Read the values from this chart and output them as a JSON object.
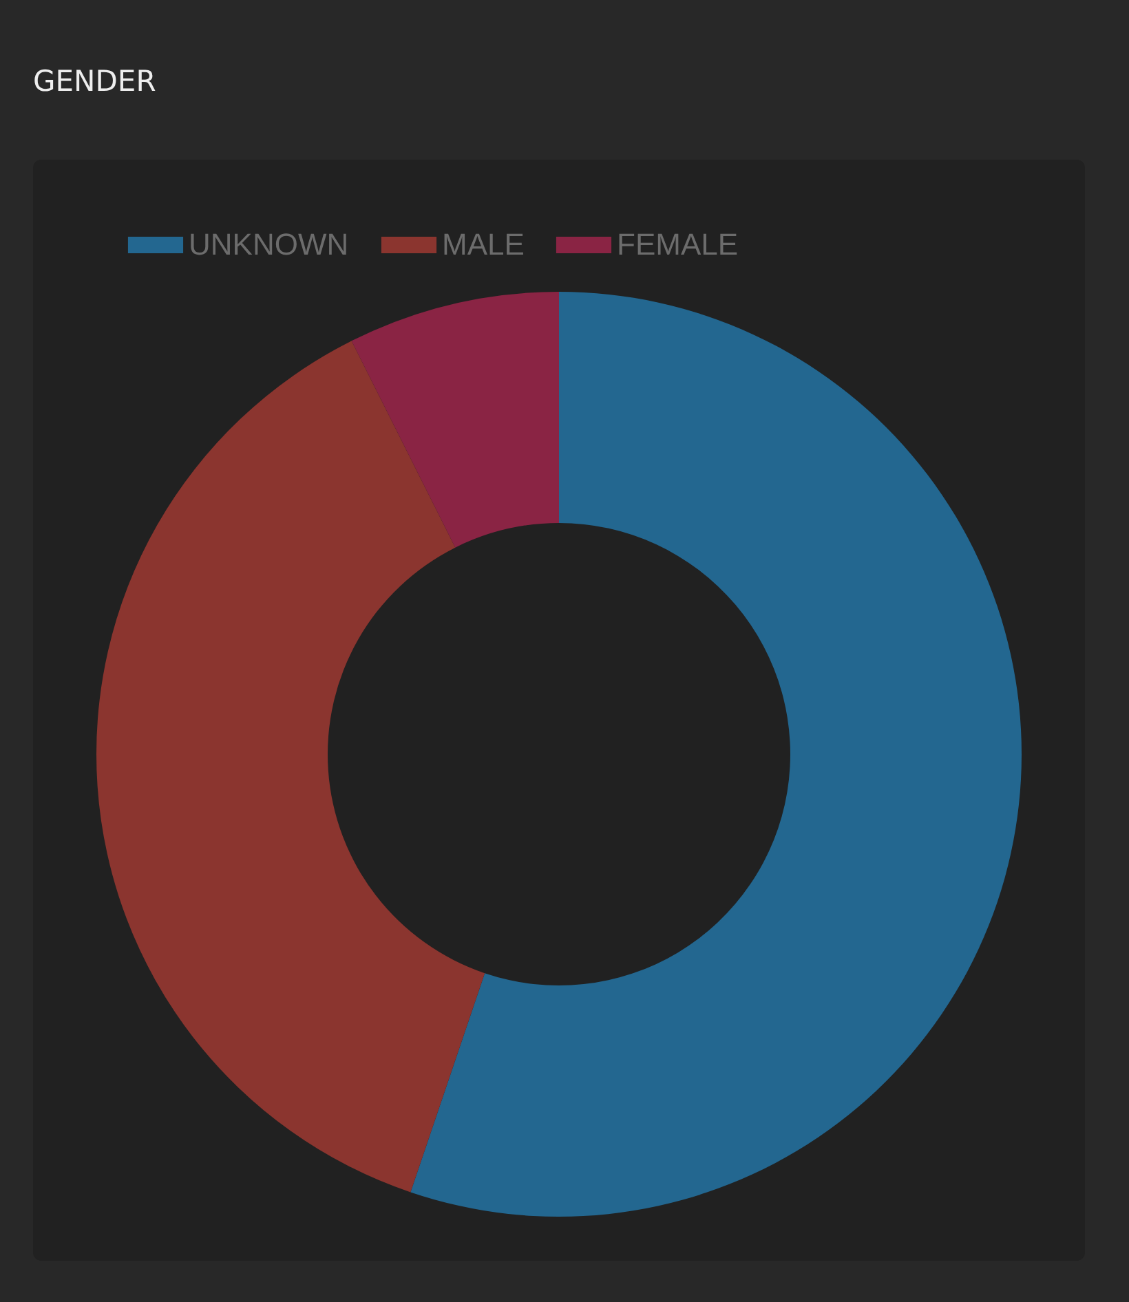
{
  "chart_data": {
    "type": "donut",
    "title": "GENDER",
    "categories": [
      "UNKNOWN",
      "MALE",
      "FEMALE"
    ],
    "values": [
      55.2,
      37.4,
      7.4
    ],
    "colors": [
      "#236790",
      "#8b352f",
      "#8a2444"
    ],
    "legend": "top"
  }
}
